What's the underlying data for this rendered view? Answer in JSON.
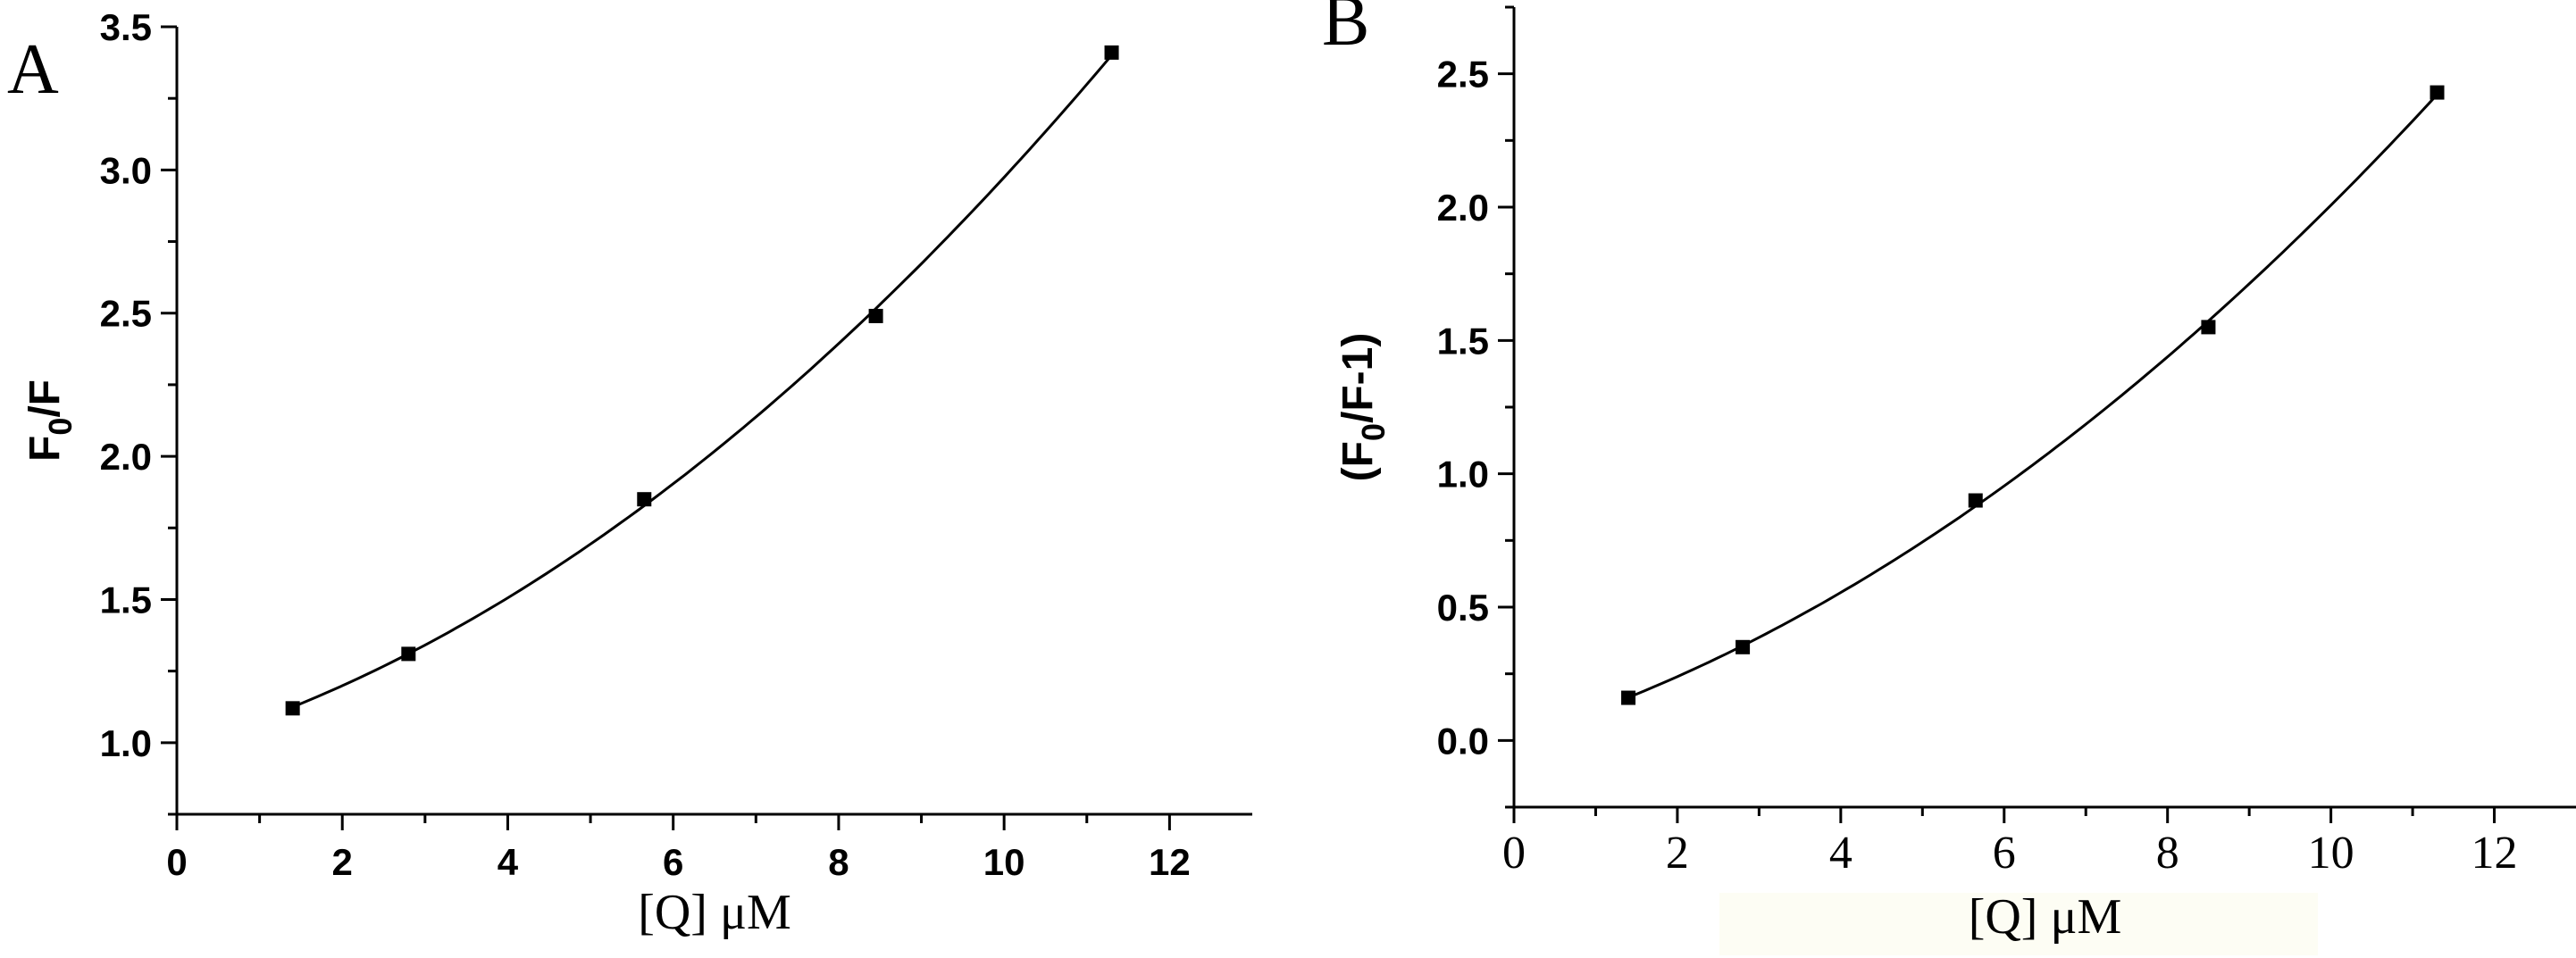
{
  "chart_data": [
    {
      "type": "scatter",
      "panel_label": "A",
      "xlabel": "[Q] μM",
      "ylabel_main": "F",
      "ylabel_sub": "0",
      "ylabel_tail": "/F",
      "xlim": [
        0,
        13
      ],
      "ylim": [
        0.75,
        3.5
      ],
      "xticks": [
        0,
        2,
        4,
        6,
        8,
        10,
        12
      ],
      "xtick_labels": [
        "0",
        "2",
        "4",
        "6",
        "8",
        "10",
        "12"
      ],
      "yticks": [
        1.0,
        1.5,
        2.0,
        2.5,
        3.0,
        3.5
      ],
      "ytick_labels": [
        "1.0",
        "1.5",
        "2.0",
        "2.5",
        "3.0",
        "3.5"
      ],
      "points": [
        {
          "x": 1.4,
          "y": 1.12
        },
        {
          "x": 2.8,
          "y": 1.31
        },
        {
          "x": 5.65,
          "y": 1.85
        },
        {
          "x": 8.45,
          "y": 2.49
        },
        {
          "x": 11.3,
          "y": 3.41
        }
      ],
      "fit_curve": true,
      "marker_color": "#000000"
    },
    {
      "type": "scatter",
      "panel_label": "B",
      "xlabel": "[Q] μM",
      "ylabel_main": "(F",
      "ylabel_sub": "0",
      "ylabel_tail": "/F-1)",
      "xlim": [
        0,
        13
      ],
      "ylim": [
        -0.25,
        2.75
      ],
      "xticks": [
        0,
        2,
        4,
        6,
        8,
        10,
        12
      ],
      "xtick_labels": [
        "0",
        "2",
        "4",
        "6",
        "8",
        "10",
        "12"
      ],
      "yticks": [
        0.0,
        0.5,
        1.0,
        1.5,
        2.0,
        2.5
      ],
      "ytick_labels": [
        "0.0",
        "0.5",
        "1.0",
        "1.5",
        "2.0",
        "2.5"
      ],
      "points": [
        {
          "x": 1.4,
          "y": 0.16
        },
        {
          "x": 2.8,
          "y": 0.35
        },
        {
          "x": 5.65,
          "y": 0.9
        },
        {
          "x": 8.5,
          "y": 1.55
        },
        {
          "x": 11.3,
          "y": 2.43
        }
      ],
      "fit_curve": true,
      "marker_color": "#000000"
    }
  ]
}
